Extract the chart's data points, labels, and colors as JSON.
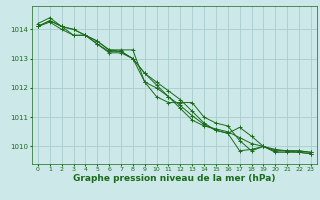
{
  "background_color": "#cce8e8",
  "grid_color": "#aacccc",
  "line_color": "#1a6b1a",
  "xlabel": "Graphe pression niveau de la mer (hPa)",
  "xlabel_fontsize": 6.5,
  "xlim": [
    -0.5,
    23.5
  ],
  "ylim": [
    1009.4,
    1014.8
  ],
  "yticks": [
    1010,
    1011,
    1012,
    1013,
    1014
  ],
  "xticks": [
    0,
    1,
    2,
    3,
    4,
    5,
    6,
    7,
    8,
    9,
    10,
    11,
    12,
    13,
    14,
    15,
    16,
    17,
    18,
    19,
    20,
    21,
    22,
    23
  ],
  "tick_labelsize": 4.5,
  "series": [
    [
      1014.1,
      1014.3,
      1014.1,
      1014.0,
      1013.8,
      1013.5,
      1013.2,
      1013.2,
      1013.0,
      1012.5,
      1012.1,
      1011.7,
      1011.3,
      1010.9,
      1010.7,
      1010.6,
      1010.5,
      1010.3,
      1010.1,
      1010.0,
      1009.8,
      1009.8,
      1009.8,
      1009.75
    ],
    [
      1014.2,
      1014.4,
      1014.1,
      1013.8,
      1013.8,
      1013.6,
      1013.3,
      1013.3,
      1013.3,
      1012.2,
      1011.7,
      1011.5,
      1011.5,
      1011.5,
      1011.0,
      1010.8,
      1010.7,
      1010.2,
      1009.85,
      1010.0,
      1009.85,
      1009.85,
      1009.85,
      1009.8
    ],
    [
      1014.1,
      1014.3,
      1014.1,
      1014.0,
      1013.8,
      1013.5,
      1013.25,
      1013.25,
      1013.0,
      1012.5,
      1012.2,
      1011.9,
      1011.6,
      1011.2,
      1010.8,
      1010.55,
      1010.45,
      1009.85,
      1009.9,
      1010.0,
      1009.85,
      1009.85,
      1009.85,
      1009.8
    ],
    [
      1014.1,
      1014.25,
      1014.0,
      1013.8,
      1013.8,
      1013.6,
      1013.3,
      1013.25,
      1013.0,
      1012.2,
      1012.0,
      1011.7,
      1011.4,
      1011.05,
      1010.75,
      1010.55,
      1010.45,
      1010.65,
      1010.35,
      1010.0,
      1009.9,
      1009.85,
      1009.8,
      1009.75
    ]
  ]
}
